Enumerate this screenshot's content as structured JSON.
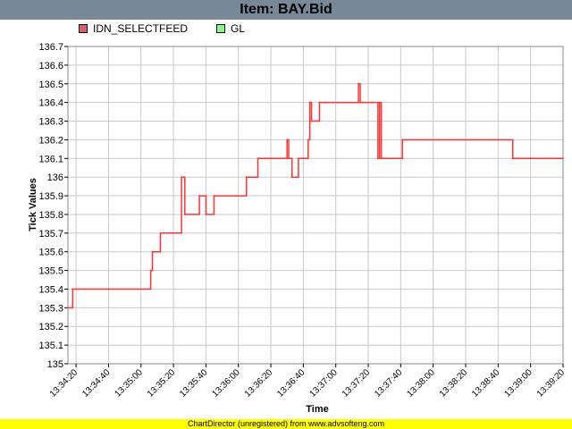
{
  "title": "Item: BAY.Bid",
  "footer": "ChartDirector (unregistered) from www.advsofteng.com",
  "colors": {
    "titlebar": "#778899",
    "series1": "#ff3333",
    "series2": "#80ff80",
    "footer": "#ffff00"
  },
  "chart_data": {
    "type": "line",
    "step": true,
    "title": "Item: BAY.Bid",
    "xlabel": "Time",
    "ylabel": "Tick Values",
    "ylim": [
      135,
      136.7
    ],
    "yticks": [
      135,
      135.1,
      135.2,
      135.3,
      135.4,
      135.5,
      135.6,
      135.7,
      135.8,
      135.9,
      136,
      136.1,
      136.2,
      136.3,
      136.4,
      136.5,
      136.6,
      136.7
    ],
    "ytick_labels": [
      "135",
      "135.1",
      "135.2",
      "135.3",
      "135.4",
      "135.5",
      "135.6",
      "135.7",
      "135.8",
      "135.9",
      "136",
      "136.1",
      "136.2",
      "136.3",
      "136.4",
      "136.5",
      "136.6",
      "136.7"
    ],
    "xlim": [
      "13:34:15",
      "13:39:20"
    ],
    "xticks": [
      "13:34:20",
      "13:34:40",
      "13:35:00",
      "13:35:20",
      "13:35:40",
      "13:36:00",
      "13:36:20",
      "13:36:40",
      "13:37:00",
      "13:37:20",
      "13:37:40",
      "13:38:00",
      "13:38:20",
      "13:38:40",
      "13:39:00",
      "13:39:20"
    ],
    "grid": true,
    "legend": "top-left",
    "series": [
      {
        "name": "IDN_SELECTFEED",
        "color": "#ff3333",
        "points": [
          [
            "13:34:15",
            135.3
          ],
          [
            "13:34:18",
            135.4
          ],
          [
            "13:35:06",
            135.5
          ],
          [
            "13:35:07",
            135.6
          ],
          [
            "13:35:12",
            135.7
          ],
          [
            "13:35:25",
            136.0
          ],
          [
            "13:35:27",
            135.8
          ],
          [
            "13:35:36",
            135.9
          ],
          [
            "13:35:40",
            135.8
          ],
          [
            "13:35:45",
            135.9
          ],
          [
            "13:36:05",
            136.0
          ],
          [
            "13:36:12",
            136.1
          ],
          [
            "13:36:30",
            136.2
          ],
          [
            "13:36:31",
            136.1
          ],
          [
            "13:36:33",
            136.0
          ],
          [
            "13:36:37",
            136.1
          ],
          [
            "13:36:43",
            136.2
          ],
          [
            "13:36:44",
            136.4
          ],
          [
            "13:36:45",
            136.3
          ],
          [
            "13:36:50",
            136.4
          ],
          [
            "13:37:14",
            136.5
          ],
          [
            "13:37:15",
            136.4
          ],
          [
            "13:37:26",
            136.1
          ],
          [
            "13:37:27",
            136.4
          ],
          [
            "13:37:28",
            136.1
          ],
          [
            "13:37:41",
            136.2
          ],
          [
            "13:38:49",
            136.1
          ],
          [
            "13:39:20",
            136.1
          ]
        ]
      },
      {
        "name": "GL",
        "color": "#80ff80",
        "points": []
      }
    ]
  }
}
